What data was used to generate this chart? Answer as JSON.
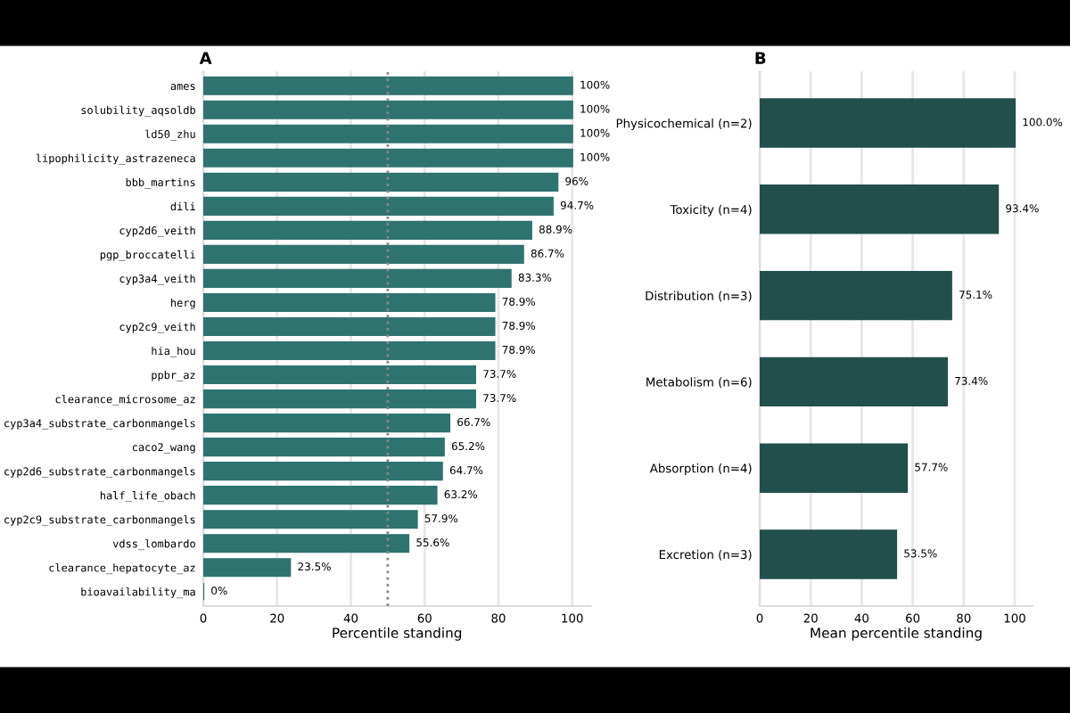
{
  "chart_data": [
    {
      "type": "bar",
      "title": "A",
      "orientation": "horizontal",
      "xlabel": "Percentile standing",
      "categories": [
        "ames",
        "solubility_aqsoldb",
        "ld50_zhu",
        "lipophilicity_astrazeneca",
        "bbb_martins",
        "dili",
        "cyp2d6_veith",
        "pgp_broccatelli",
        "cyp3a4_veith",
        "herg",
        "cyp2c9_veith",
        "hia_hou",
        "ppbr_az",
        "clearance_microsome_az",
        "cyp3a4_substrate_carbonmangels",
        "caco2_wang",
        "cyp2d6_substrate_carbonmangels",
        "half_life_obach",
        "cyp2c9_substrate_carbonmangels",
        "vdss_lombardo",
        "clearance_hepatocyte_az",
        "bioavailability_ma"
      ],
      "values": [
        100,
        100,
        100,
        100,
        96,
        94.7,
        88.9,
        86.7,
        83.3,
        78.9,
        78.9,
        78.9,
        73.7,
        73.7,
        66.7,
        65.2,
        64.7,
        63.2,
        57.9,
        55.6,
        23.5,
        0
      ],
      "value_labels": [
        "100%",
        "100%",
        "100%",
        "100%",
        "96%",
        "94.7%",
        "88.9%",
        "86.7%",
        "83.3%",
        "78.9%",
        "78.9%",
        "78.9%",
        "73.7%",
        "73.7%",
        "66.7%",
        "65.2%",
        "64.7%",
        "63.2%",
        "57.9%",
        "55.6%",
        "23.5%",
        "0%"
      ],
      "color": "#2f7370",
      "xlim": [
        0,
        105
      ],
      "xticks": [
        0,
        20,
        40,
        60,
        80,
        100
      ],
      "grid": "x",
      "ref_lines": [
        {
          "axis": "x",
          "value": 50,
          "color": "#888888",
          "line_style": "dotted"
        }
      ]
    },
    {
      "type": "bar",
      "title": "B",
      "orientation": "horizontal",
      "xlabel": "Mean percentile standing",
      "categories": [
        "Physicochemical (n=2)",
        "Toxicity (n=4)",
        "Distribution (n=3)",
        "Metabolism (n=6)",
        "Absorption (n=4)",
        "Excretion (n=3)"
      ],
      "values": [
        100.0,
        93.4,
        75.1,
        73.4,
        57.7,
        53.5
      ],
      "value_labels": [
        "100.0%",
        "93.4%",
        "75.1%",
        "73.4%",
        "57.7%",
        "53.5%"
      ],
      "color": "#224f4c",
      "xlim": [
        0,
        107
      ],
      "xticks": [
        0,
        20,
        40,
        60,
        80,
        100
      ],
      "grid": "x"
    }
  ]
}
